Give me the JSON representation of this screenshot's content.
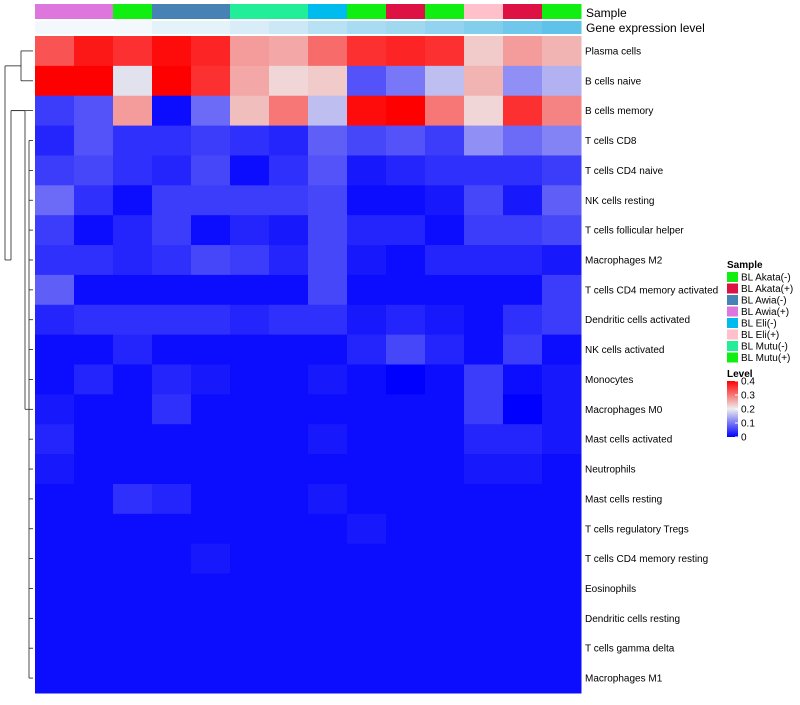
{
  "chart_data": {
    "type": "heatmap",
    "annotation_titles": {
      "sample": "Sample",
      "expression": "Gene expression level"
    },
    "columns": [
      "BL Awia(+)",
      "BL Awia(+)",
      "BL Mutu(+)",
      "BL Awia(-)",
      "BL Awia(-)",
      "BL Mutu(-)",
      "BL Mutu(-)",
      "BL Eli(-)",
      "BL Akata(-)",
      "BL Akata(+)",
      "BL Mutu(+)",
      "BL Eli(+)",
      "BL Akata(+)",
      "BL Mutu(+)"
    ],
    "column_sample_colors": [
      "#dd77dd",
      "#dd77dd",
      "#11ee11",
      "#4682b4",
      "#4682b4",
      "#22ee99",
      "#22ee99",
      "#00bbee",
      "#11ee11",
      "#dd1144",
      "#11ee11",
      "#ffc0cb",
      "#dd1144",
      "#11ee11"
    ],
    "column_expression_colors": [
      "#f2f8fc",
      "#f2f8fc",
      "#f2f8fc",
      "#e4f2fa",
      "#e4f2fa",
      "#d8edf8",
      "#cce8f6",
      "#b8e2f4",
      "#a9dcf2",
      "#a0d8f0",
      "#92d3ef",
      "#82ceed",
      "#6fc8eb",
      "#5ec2e9"
    ],
    "rows": [
      "Plasma cells",
      "B cells naive",
      "B cells memory",
      "T cells CD8",
      "T cells CD4 naive",
      "NK cells resting",
      "T cells follicular helper",
      "Macrophages M2",
      "T cells CD4 memory activated",
      "Dendritic cells activated",
      "NK cells activated",
      "Monocytes",
      "Macrophages M0",
      "Mast cells activated",
      "Neutrophils",
      "Mast cells resting",
      "T cells regulatory  Tregs",
      "T cells CD4 memory resting",
      "Eosinophils",
      "Dendritic cells resting",
      "T cells gamma delta",
      "Macrophages M1"
    ],
    "values": [
      [
        0.33,
        0.38,
        0.36,
        0.39,
        0.37,
        0.27,
        0.26,
        0.31,
        0.36,
        0.37,
        0.36,
        0.23,
        0.27,
        0.25
      ],
      [
        0.4,
        0.4,
        0.19,
        0.4,
        0.36,
        0.26,
        0.22,
        0.23,
        0.07,
        0.1,
        0.16,
        0.25,
        0.12,
        0.15
      ],
      [
        0.05,
        0.07,
        0.27,
        0.01,
        0.09,
        0.24,
        0.3,
        0.16,
        0.39,
        0.4,
        0.3,
        0.22,
        0.36,
        0.29
      ],
      [
        0.03,
        0.07,
        0.04,
        0.04,
        0.05,
        0.04,
        0.03,
        0.08,
        0.06,
        0.07,
        0.05,
        0.12,
        0.09,
        0.11
      ],
      [
        0.05,
        0.06,
        0.04,
        0.03,
        0.06,
        0.01,
        0.04,
        0.07,
        0.02,
        0.03,
        0.04,
        0.04,
        0.04,
        0.05
      ],
      [
        0.09,
        0.04,
        0.01,
        0.05,
        0.05,
        0.05,
        0.05,
        0.06,
        0.01,
        0.01,
        0.02,
        0.06,
        0.02,
        0.08
      ],
      [
        0.05,
        0.01,
        0.03,
        0.05,
        0.01,
        0.03,
        0.02,
        0.06,
        0.03,
        0.03,
        0.01,
        0.05,
        0.05,
        0.06
      ],
      [
        0.04,
        0.04,
        0.03,
        0.04,
        0.06,
        0.05,
        0.03,
        0.06,
        0.02,
        0.01,
        0.03,
        0.03,
        0.03,
        0.02
      ],
      [
        0.08,
        0.01,
        0.01,
        0.01,
        0.01,
        0.01,
        0.01,
        0.06,
        0.01,
        0.01,
        0.01,
        0.01,
        0.01,
        0.05
      ],
      [
        0.03,
        0.04,
        0.04,
        0.04,
        0.04,
        0.03,
        0.04,
        0.04,
        0.02,
        0.03,
        0.02,
        0.01,
        0.04,
        0.05
      ],
      [
        0.01,
        0.01,
        0.03,
        0.01,
        0.01,
        0.01,
        0.01,
        0.01,
        0.03,
        0.06,
        0.03,
        0.01,
        0.05,
        0.01
      ],
      [
        0.01,
        0.03,
        0.01,
        0.03,
        0.02,
        0.01,
        0.01,
        0.02,
        0.01,
        0.0,
        0.01,
        0.05,
        0.01,
        0.02
      ],
      [
        0.02,
        0.01,
        0.01,
        0.04,
        0.01,
        0.01,
        0.01,
        0.01,
        0.01,
        0.01,
        0.01,
        0.05,
        0.0,
        0.02
      ],
      [
        0.03,
        0.01,
        0.01,
        0.01,
        0.01,
        0.01,
        0.01,
        0.02,
        0.01,
        0.01,
        0.01,
        0.03,
        0.03,
        0.02
      ],
      [
        0.02,
        0.01,
        0.01,
        0.01,
        0.01,
        0.01,
        0.01,
        0.01,
        0.01,
        0.01,
        0.01,
        0.02,
        0.02,
        0.01
      ],
      [
        0.01,
        0.01,
        0.04,
        0.03,
        0.01,
        0.01,
        0.01,
        0.02,
        0.01,
        0.01,
        0.01,
        0.01,
        0.01,
        0.01
      ],
      [
        0.01,
        0.01,
        0.01,
        0.01,
        0.01,
        0.01,
        0.01,
        0.01,
        0.02,
        0.01,
        0.01,
        0.01,
        0.01,
        0.01
      ],
      [
        0.01,
        0.01,
        0.01,
        0.01,
        0.02,
        0.01,
        0.01,
        0.01,
        0.01,
        0.01,
        0.01,
        0.01,
        0.01,
        0.01
      ],
      [
        0.01,
        0.01,
        0.01,
        0.01,
        0.01,
        0.01,
        0.01,
        0.01,
        0.01,
        0.01,
        0.01,
        0.01,
        0.01,
        0.01
      ],
      [
        0.01,
        0.01,
        0.01,
        0.01,
        0.01,
        0.01,
        0.01,
        0.01,
        0.01,
        0.01,
        0.01,
        0.01,
        0.01,
        0.01
      ],
      [
        0.01,
        0.01,
        0.01,
        0.01,
        0.01,
        0.01,
        0.01,
        0.01,
        0.01,
        0.01,
        0.01,
        0.01,
        0.01,
        0.01
      ],
      [
        0.01,
        0.01,
        0.01,
        0.01,
        0.01,
        0.01,
        0.01,
        0.01,
        0.01,
        0.01,
        0.01,
        0.01,
        0.01,
        0.01
      ]
    ],
    "color_scale": {
      "min": 0,
      "mid": 0.2,
      "max": 0.4,
      "low": "#0000ff",
      "midcolor": "#eeeeee",
      "high": "#ff0000"
    },
    "legend_sample": {
      "title": "Sample",
      "entries": [
        {
          "label": "BL Akata(-)",
          "color": "#11ee11"
        },
        {
          "label": "BL Akata(+)",
          "color": "#dd1144"
        },
        {
          "label": "BL Awia(-)",
          "color": "#4682b4"
        },
        {
          "label": "BL Awia(+)",
          "color": "#dd77dd"
        },
        {
          "label": "BL Eli(-)",
          "color": "#00bbee"
        },
        {
          "label": "BL Eli(+)",
          "color": "#ffc0cb"
        },
        {
          "label": "BL Mutu(-)",
          "color": "#22ee99"
        },
        {
          "label": "BL Mutu(+)",
          "color": "#11ee11"
        }
      ]
    },
    "legend_level": {
      "title": "Level",
      "ticks": [
        0.4,
        0.3,
        0.2,
        0.1,
        0
      ]
    },
    "row_dendrogram": true,
    "legend_placement": "right"
  }
}
